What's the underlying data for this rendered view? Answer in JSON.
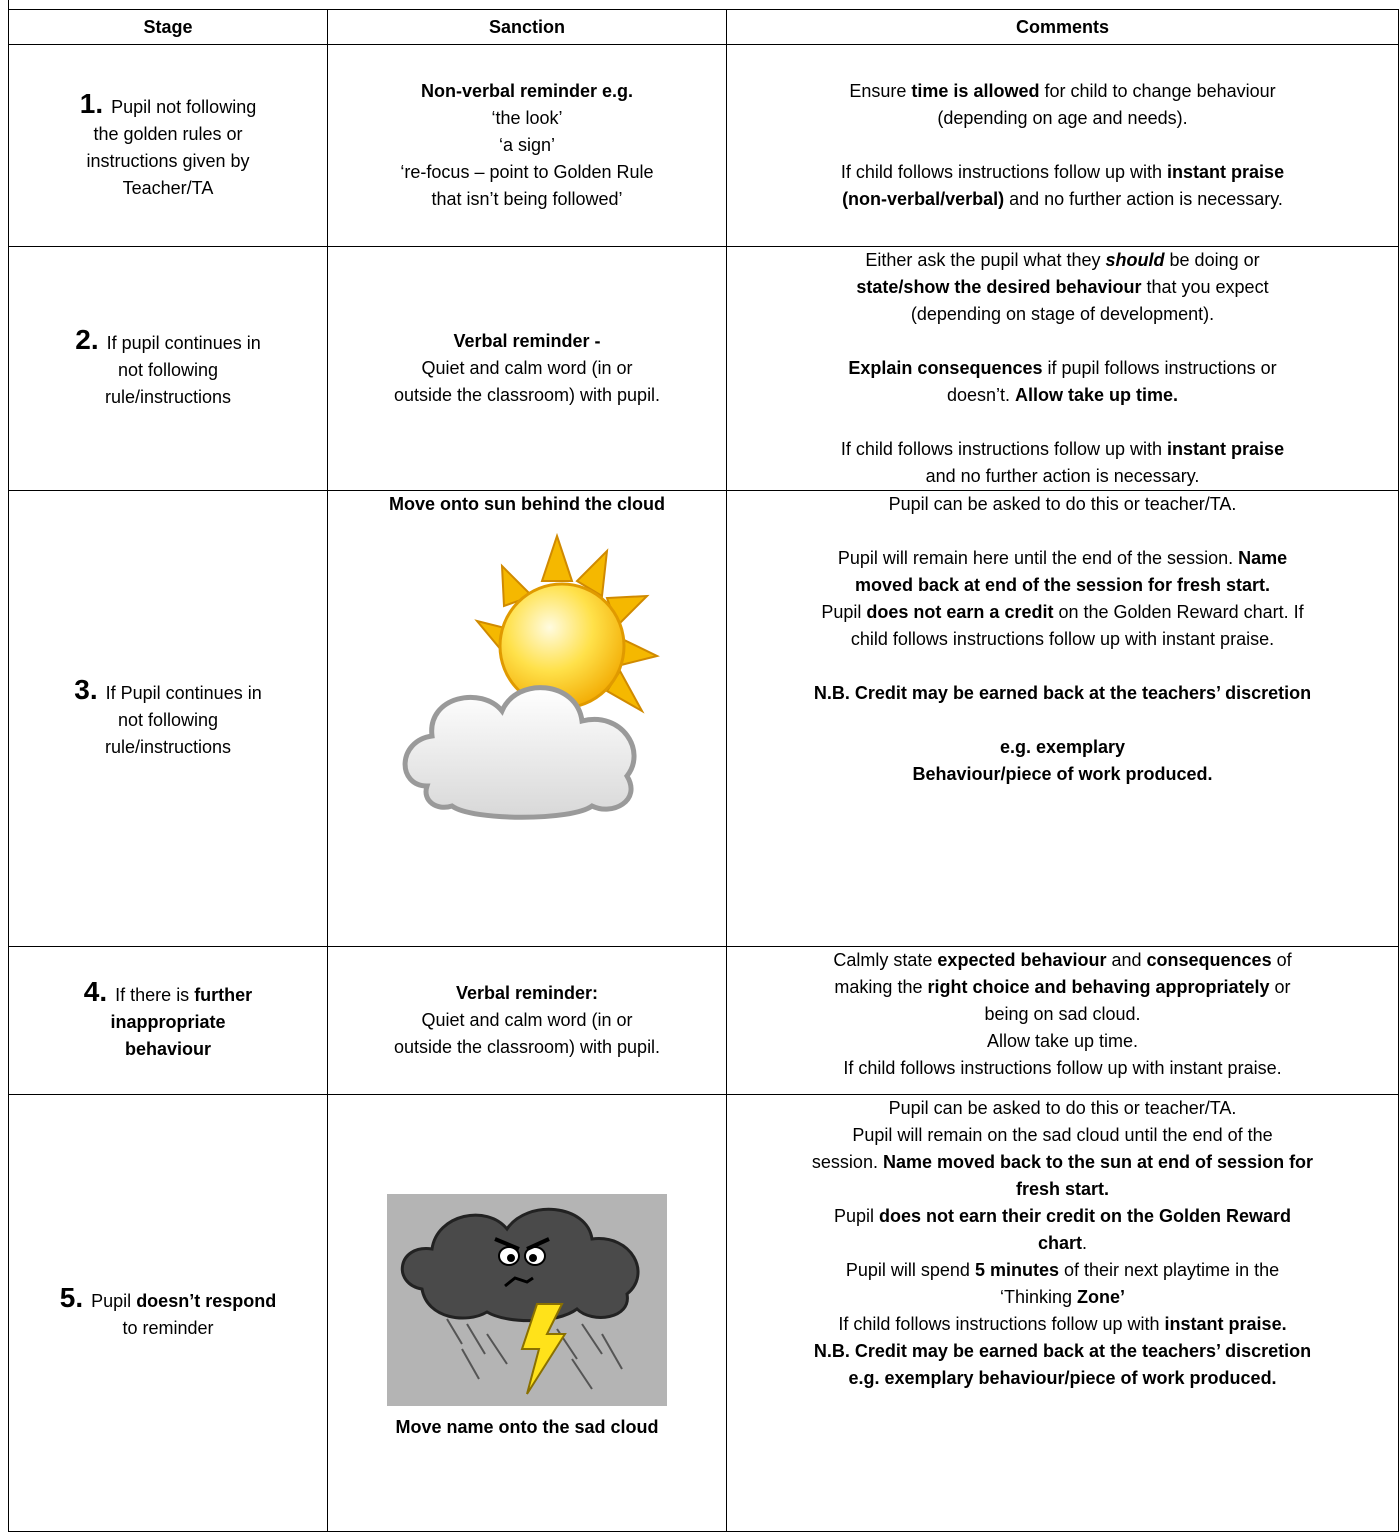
{
  "table": {
    "header": [
      "Stage",
      "Sanction",
      "Comments"
    ],
    "rows": [
      {
        "stage": {
          "number": "1.",
          "lines": [
            [
              "Pupil not following"
            ],
            [
              "the golden rules or"
            ],
            [
              "instructions given by"
            ],
            [
              "Teacher/TA"
            ]
          ]
        },
        "sanction": {
          "lines": [
            [
              {
                "text": "Non-verbal reminder e.g.",
                "bold": true
              }
            ],
            [
              "‘the look’"
            ],
            [
              "‘a sign’"
            ],
            [
              "‘re-focus – point to Golden Rule"
            ],
            [
              "that isn’t being followed’"
            ]
          ]
        },
        "comments": [
          [
            "Ensure ",
            {
              "text": "time is allowed",
              "bold": true
            },
            " for child to change behaviour"
          ],
          [
            "(depending on age and needs)."
          ],
          [],
          [
            "If child follows instructions follow up with ",
            {
              "text": "instant praise",
              "bold": true
            }
          ],
          [
            {
              "text": "(non-verbal/verbal)",
              "bold": true
            },
            " and no further action is necessary."
          ]
        ]
      },
      {
        "stage": {
          "number": "2.",
          "lines": [
            [
              "If pupil continues in"
            ],
            [
              "not following"
            ],
            [
              "rule/instructions"
            ]
          ]
        },
        "sanction": {
          "lines": [
            [
              {
                "text": "Verbal reminder -",
                "bold": true
              }
            ],
            [
              "Quiet and calm word (in or"
            ],
            [
              "outside the classroom) with pupil."
            ]
          ]
        },
        "comments": [
          [
            "Either ask the pupil what they ",
            {
              "text": "should",
              "bold": true,
              "italic": true
            },
            " be doing or"
          ],
          [
            {
              "text": "state/show the desired behaviour",
              "bold": true
            },
            " that you expect"
          ],
          [
            "(depending on stage of development)."
          ],
          [],
          [
            {
              "text": "Explain consequences",
              "bold": true
            },
            " if pupil follows instructions or"
          ],
          [
            "doesn’t. ",
            {
              "text": "Allow take up time.",
              "bold": true
            }
          ],
          [],
          [
            "If child follows instructions follow up with ",
            {
              "text": "instant praise",
              "bold": true
            }
          ],
          [
            "and no further action is necessary."
          ]
        ]
      },
      {
        "stage": {
          "number": "3.",
          "lines": [
            [
              "If Pupil continues in"
            ],
            [
              "not following"
            ],
            [
              "rule/instructions"
            ]
          ]
        },
        "sanction": {
          "lines": [
            [
              {
                "text": "Move onto sun behind the cloud",
                "bold": true
              }
            ]
          ]
        },
        "comments": [
          [
            "Pupil can be asked to do this or teacher/TA."
          ],
          [],
          [
            "Pupil will remain here until the end of the session. ",
            {
              "text": "Name",
              "bold": true
            }
          ],
          [
            {
              "text": "moved back at end of the session for fresh start.",
              "bold": true
            }
          ],
          [
            "Pupil ",
            {
              "text": "does not earn a credit",
              "bold": true
            },
            " on the Golden Reward chart. If"
          ],
          [
            "child follows instructions follow up with instant praise."
          ],
          [],
          [
            {
              "text": "N.B.  Credit may be earned back at the teachers’ discretion",
              "bold": true
            }
          ],
          [],
          [
            {
              "text": "e.g. exemplary",
              "bold": true
            }
          ],
          [
            {
              "text": "Behaviour/piece of work produced.",
              "bold": true
            }
          ]
        ]
      },
      {
        "stage": {
          "number": "4.",
          "lines": [
            [
              "If there is ",
              {
                "text": "further",
                "bold": true
              }
            ],
            [
              {
                "text": "inappropriate",
                "bold": true
              }
            ],
            [
              {
                "text": "behaviour",
                "bold": true
              }
            ]
          ]
        },
        "sanction": {
          "lines": [
            [
              {
                "text": "Verbal reminder:",
                "bold": true
              }
            ],
            [
              "Quiet and calm word (in or"
            ],
            [
              "outside the classroom) with pupil."
            ]
          ]
        },
        "comments": [
          [
            "Calmly state ",
            {
              "text": "expected behaviour",
              "bold": true
            },
            " and ",
            {
              "text": "consequences",
              "bold": true
            },
            " of"
          ],
          [
            "making the ",
            {
              "text": "right choice and behaving appropriately",
              "bold": true
            },
            " or"
          ],
          [
            "being on sad cloud."
          ],
          [
            "Allow take up time."
          ],
          [
            "If child follows instructions follow up with instant praise."
          ]
        ]
      },
      {
        "stage": {
          "number": "5.",
          "lines": [
            [
              "Pupil ",
              {
                "text": "doesn’t respond",
                "bold": true
              }
            ],
            [
              "to reminder"
            ]
          ]
        },
        "sanction": {
          "lines": [],
          "caption": [
            [
              {
                "text": "Move name onto the sad cloud",
                "bold": true
              }
            ]
          ]
        },
        "comments": [
          [
            "Pupil can be asked to do this or teacher/TA."
          ],
          [
            "Pupil will remain on the sad cloud until the end of the"
          ],
          [
            "session. ",
            {
              "text": "Name moved back to the sun at end of session for",
              "bold": true
            }
          ],
          [
            {
              "text": "fresh start.",
              "bold": true
            }
          ],
          [
            "Pupil ",
            {
              "text": "does not earn their credit on the Golden Reward",
              "bold": true
            }
          ],
          [
            {
              "text": "chart",
              "bold": true
            },
            "."
          ],
          [
            "Pupil will spend ",
            {
              "text": "5 minutes",
              "bold": true
            },
            " of their next playtime in the"
          ],
          [
            "‘Thinking ",
            {
              "text": "Zone’",
              "bold": true
            }
          ],
          [
            "If child follows instructions follow up with ",
            {
              "text": "instant praise.",
              "bold": true
            }
          ],
          [
            {
              "text": "N.B.  Credit may be earned back at the teachers’ discretion",
              "bold": true
            }
          ],
          [
            {
              "text": "e.g. exemplary behaviour/piece of work produced.",
              "bold": true
            }
          ]
        ]
      }
    ]
  }
}
